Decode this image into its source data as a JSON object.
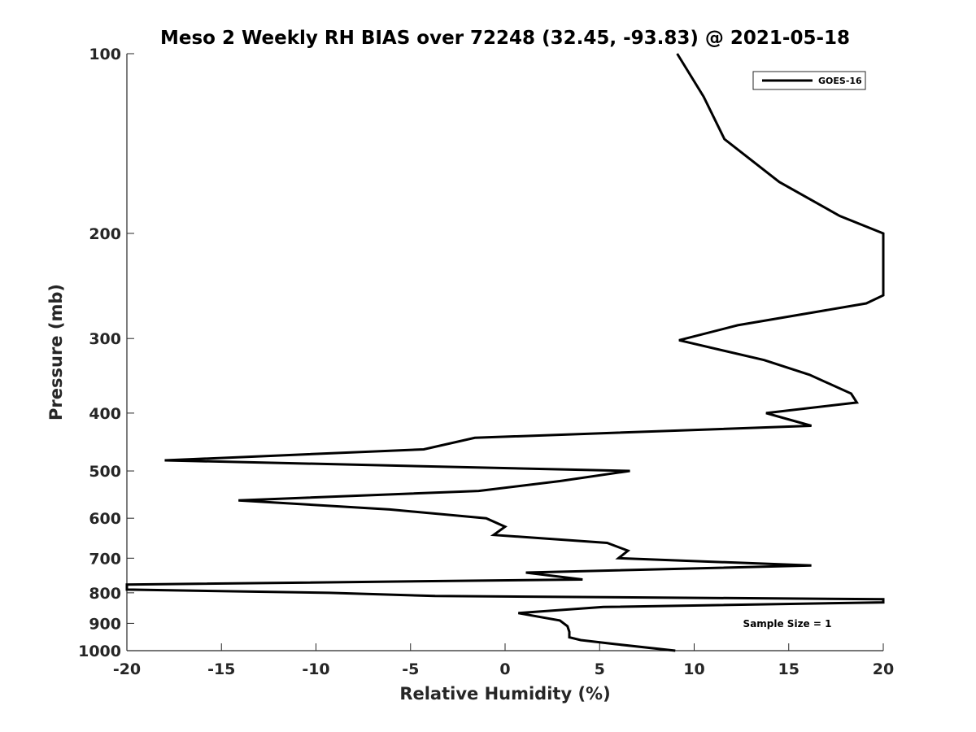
{
  "chart_data": {
    "type": "line",
    "title": "Meso 2 Weekly RH BIAS over 72248 (32.45, -93.83) @ 2021-05-18",
    "xlabel": "Relative Humidity (%)",
    "ylabel": "Pressure (mb)",
    "xlim": [
      -20,
      20
    ],
    "ylim": [
      100,
      1000
    ],
    "y_scale": "log",
    "y_reversed": true,
    "x_ticks": [
      -20,
      -15,
      -10,
      -5,
      0,
      5,
      10,
      15,
      20
    ],
    "y_ticks": [
      100,
      200,
      300,
      400,
      500,
      600,
      700,
      800,
      900,
      1000
    ],
    "grid": false,
    "legend_position": "top-right",
    "annotation": "Sample Size = 1",
    "series": [
      {
        "name": "GOES-16",
        "color": "#000000",
        "points": [
          [
            9.1,
            100
          ],
          [
            10.5,
            118
          ],
          [
            11.6,
            139
          ],
          [
            14.5,
            164
          ],
          [
            17.7,
            187
          ],
          [
            20.0,
            200
          ],
          [
            20.0,
            254
          ],
          [
            19.1,
            262
          ],
          [
            12.3,
            285
          ],
          [
            9.2,
            302
          ],
          [
            13.7,
            326
          ],
          [
            16.1,
            345
          ],
          [
            18.3,
            371
          ],
          [
            18.6,
            384
          ],
          [
            13.8,
            400
          ],
          [
            16.2,
            420
          ],
          [
            -1.6,
            440
          ],
          [
            -4.3,
            460
          ],
          [
            -18.0,
            480
          ],
          [
            6.6,
            500
          ],
          [
            2.9,
            520
          ],
          [
            -1.4,
            540
          ],
          [
            -14.1,
            560
          ],
          [
            -6.1,
            580
          ],
          [
            -1.0,
            600
          ],
          [
            0.0,
            620
          ],
          [
            -0.6,
            640
          ],
          [
            5.4,
            660
          ],
          [
            6.5,
            680
          ],
          [
            6.0,
            700
          ],
          [
            16.2,
            720
          ],
          [
            1.1,
            740
          ],
          [
            4.1,
            760
          ],
          [
            -20.0,
            775
          ],
          [
            -20.0,
            790
          ],
          [
            -9.3,
            800
          ],
          [
            -3.7,
            810
          ],
          [
            20.0,
            820
          ],
          [
            20.0,
            830
          ],
          [
            5.2,
            845
          ],
          [
            0.7,
            865
          ],
          [
            2.9,
            890
          ],
          [
            3.3,
            910
          ],
          [
            3.4,
            930
          ],
          [
            3.4,
            950
          ],
          [
            4.0,
            960
          ],
          [
            5.8,
            975
          ],
          [
            9.0,
            1000
          ]
        ]
      }
    ]
  }
}
